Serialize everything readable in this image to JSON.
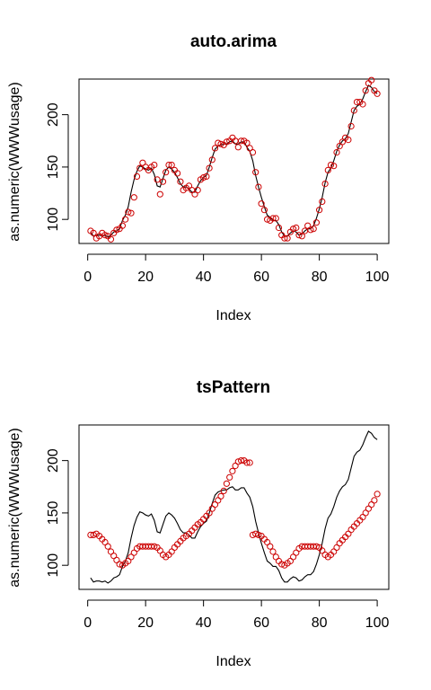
{
  "colors": {
    "actual_line": "#000000",
    "fitted_points": "#cc0000",
    "frame": "#000000",
    "background": "#ffffff"
  },
  "chart_data": [
    {
      "type": "line",
      "title": "auto.arima",
      "xlabel": "Index",
      "ylabel": "as.numeric(WWWusage)",
      "xlim": [
        -3,
        104
      ],
      "ylim": [
        77,
        234
      ],
      "xticks": [
        0,
        20,
        40,
        60,
        80,
        100
      ],
      "yticks": [
        100,
        150,
        200
      ],
      "grid": false,
      "legend": "none",
      "series": [
        {
          "kind": "line",
          "values": [
            88,
            84,
            85,
            85,
            84,
            85,
            83,
            85,
            88,
            89,
            91,
            99,
            104,
            112,
            126,
            138,
            146,
            151,
            150,
            148,
            147,
            149,
            143,
            132,
            131,
            139,
            147,
            150,
            148,
            145,
            140,
            134,
            131,
            131,
            129,
            126,
            126,
            132,
            137,
            140,
            142,
            150,
            159,
            167,
            170,
            171,
            172,
            172,
            174,
            175,
            172,
            172,
            174,
            174,
            169,
            165,
            156,
            142,
            131,
            121,
            112,
            104,
            102,
            99,
            99,
            95,
            88,
            84,
            84,
            87,
            89,
            88,
            85,
            86,
            89,
            91,
            91,
            94,
            101,
            110,
            121,
            135,
            145,
            149,
            156,
            165,
            171,
            175,
            177,
            182,
            193,
            204,
            208,
            210,
            215,
            222,
            228,
            226,
            222,
            220
          ]
        },
        {
          "kind": "points",
          "values": [
            89,
            87,
            82,
            84,
            87,
            85,
            84,
            81,
            87,
            90,
            91,
            94,
            100,
            107,
            106,
            121,
            141,
            149,
            154,
            150,
            147,
            150,
            152,
            138,
            124,
            136,
            145,
            152,
            152,
            147,
            144,
            136,
            128,
            130,
            132,
            128,
            124,
            128,
            138,
            140,
            141,
            149,
            157,
            168,
            173,
            172,
            171,
            174,
            175,
            178,
            175,
            169,
            175,
            175,
            173,
            168,
            164,
            145,
            131,
            115,
            109,
            100,
            99,
            101,
            101,
            92,
            85,
            82,
            82,
            88,
            91,
            92,
            85,
            84,
            89,
            94,
            90,
            91,
            97,
            109,
            117,
            134,
            147,
            152,
            151,
            164,
            170,
            174,
            178,
            176,
            189,
            204,
            212,
            212,
            210,
            223,
            230,
            233,
            223,
            220
          ]
        }
      ]
    },
    {
      "type": "line",
      "title": "tsPattern",
      "xlabel": "Index",
      "ylabel": "as.numeric(WWWusage)",
      "xlim": [
        -3,
        104
      ],
      "ylim": [
        77,
        234
      ],
      "xticks": [
        0,
        20,
        40,
        60,
        80,
        100
      ],
      "yticks": [
        100,
        150,
        200
      ],
      "grid": false,
      "legend": "none",
      "series": [
        {
          "kind": "line",
          "values": [
            88,
            84,
            85,
            85,
            84,
            85,
            83,
            85,
            88,
            89,
            91,
            99,
            104,
            112,
            126,
            138,
            146,
            151,
            150,
            148,
            147,
            149,
            143,
            132,
            131,
            139,
            147,
            150,
            148,
            145,
            140,
            134,
            131,
            131,
            129,
            126,
            126,
            132,
            137,
            140,
            142,
            150,
            159,
            167,
            170,
            171,
            172,
            172,
            174,
            175,
            172,
            172,
            174,
            174,
            169,
            165,
            156,
            142,
            131,
            121,
            112,
            104,
            102,
            99,
            99,
            95,
            88,
            84,
            84,
            87,
            89,
            88,
            85,
            86,
            89,
            91,
            91,
            94,
            101,
            110,
            121,
            135,
            145,
            149,
            156,
            165,
            171,
            175,
            177,
            182,
            193,
            204,
            208,
            210,
            215,
            222,
            228,
            226,
            222,
            220
          ]
        },
        {
          "kind": "points",
          "values": [
            129,
            129,
            130,
            128,
            125,
            122,
            118,
            113,
            109,
            105,
            101,
            100,
            102,
            104,
            108,
            112,
            116,
            118,
            118,
            118,
            118,
            118,
            118,
            117,
            114,
            110,
            108,
            110,
            113,
            117,
            120,
            123,
            126,
            128,
            130,
            133,
            136,
            139,
            141,
            144,
            147,
            150,
            154,
            158,
            162,
            166,
            171,
            178,
            184,
            190,
            195,
            199,
            200,
            200,
            198,
            198,
            129,
            130,
            129,
            128,
            125,
            122,
            118,
            113,
            108,
            104,
            101,
            100,
            102,
            104,
            108,
            112,
            116,
            118,
            118,
            118,
            118,
            118,
            118,
            117,
            114,
            110,
            108,
            110,
            113,
            117,
            121,
            124,
            127,
            130,
            134,
            137,
            140,
            143,
            146,
            150,
            154,
            158,
            162,
            168
          ]
        }
      ]
    }
  ]
}
